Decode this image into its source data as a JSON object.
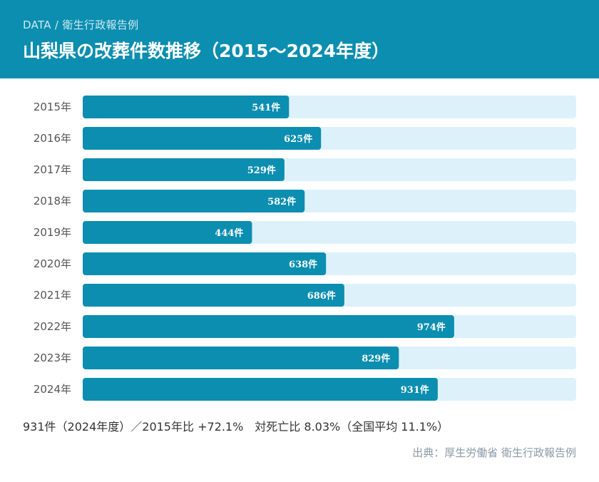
{
  "header": {
    "kicker": "DATA / 衛生行政報告例",
    "title": "山梨県の改葬件数推移（2015〜2024年度）"
  },
  "colors": {
    "accent": "#0b8eb0",
    "track": "#ddf1fb"
  },
  "chart_data": {
    "type": "bar",
    "orientation": "horizontal",
    "title": "山梨県の改葬件数推移（2015〜2024年度）",
    "categories": [
      "2015年",
      "2016年",
      "2017年",
      "2018年",
      "2019年",
      "2020年",
      "2021年",
      "2022年",
      "2023年",
      "2024年"
    ],
    "values": [
      541,
      625,
      529,
      582,
      444,
      638,
      686,
      974,
      829,
      931
    ],
    "unit": "件",
    "xlim": [
      0,
      1294
    ]
  },
  "summary": {
    "text": "931件（2024年度）／2015年比 +72.1%　対死亡比 8.03%（全国平均 11.1%）"
  },
  "source": {
    "text": "出典：厚生労働省 衛生行政報告例"
  }
}
